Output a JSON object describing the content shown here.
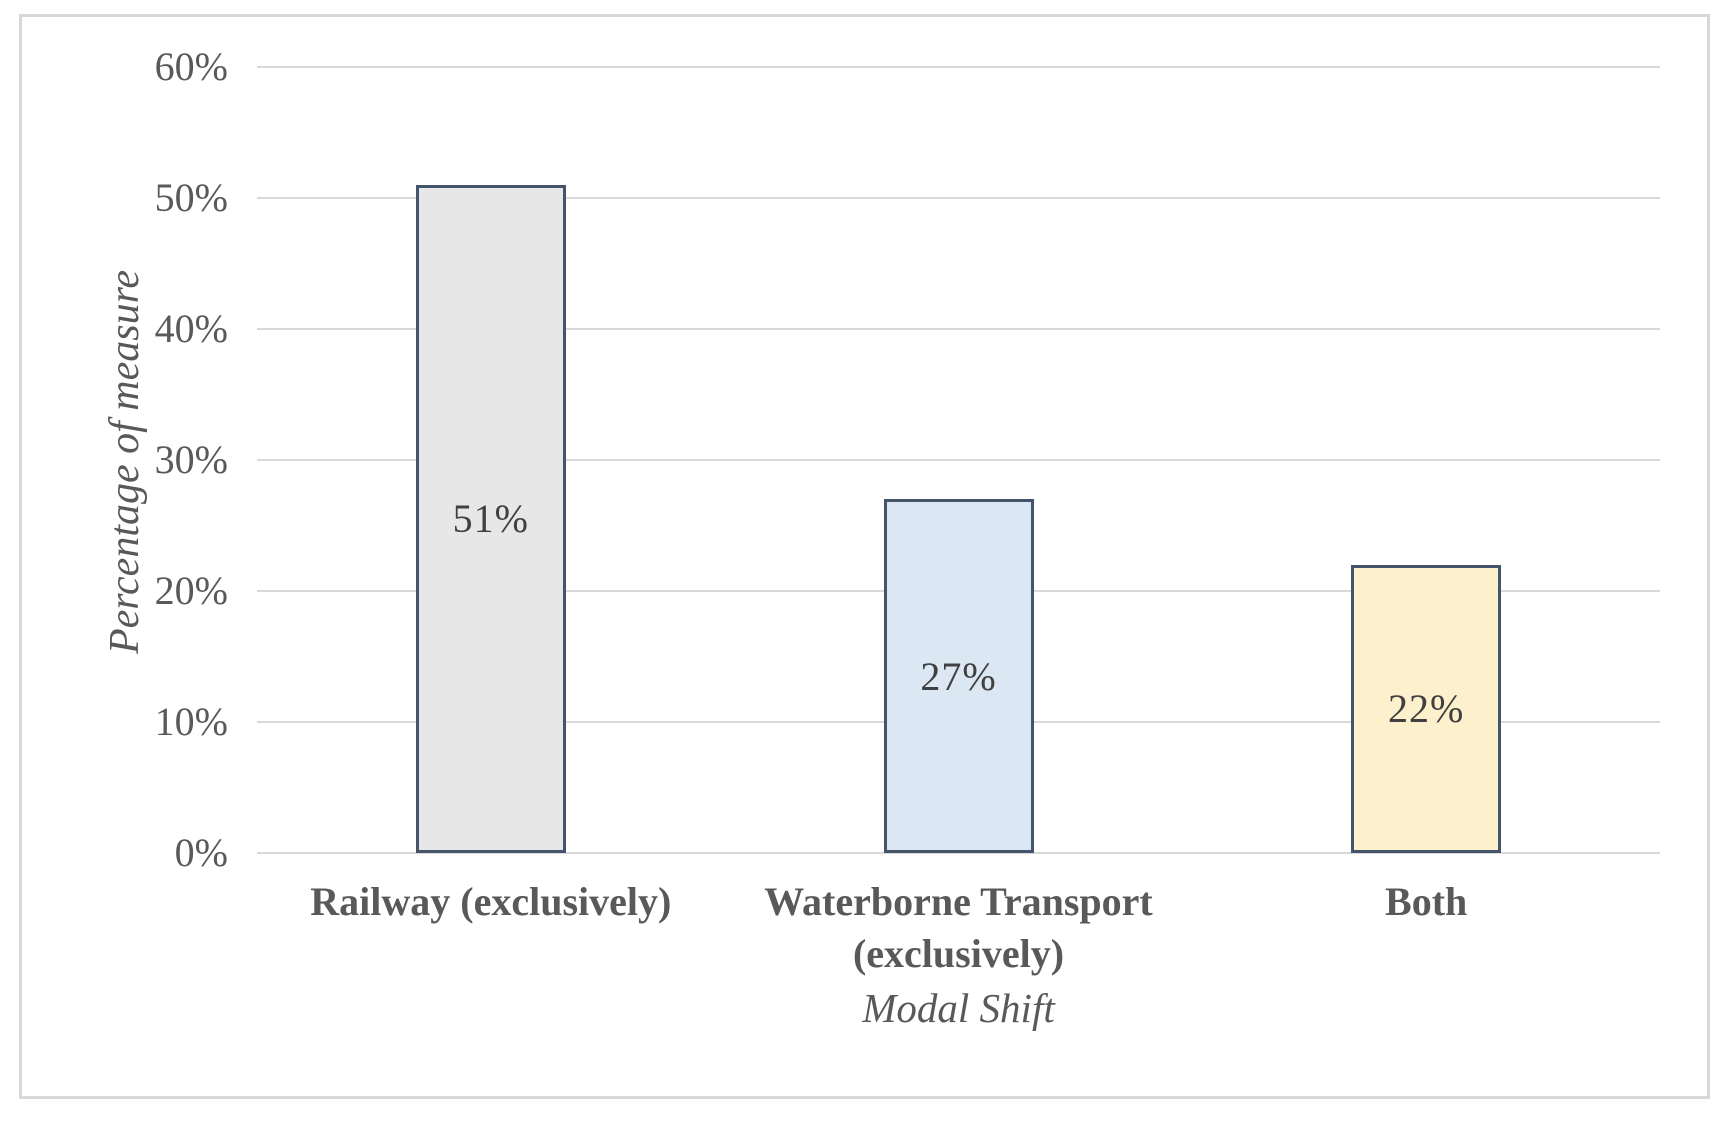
{
  "chart_data": {
    "type": "bar",
    "title": "",
    "xlabel": "Modal Shift",
    "ylabel": "Percentage of measure",
    "categories": [
      "Railway (exclusively)",
      "Waterborne Transport (exclusively)",
      "Both"
    ],
    "values": [
      51,
      27,
      22
    ],
    "data_labels": [
      "51%",
      "27%",
      "22%"
    ],
    "y_ticks": [
      {
        "value": 0,
        "label": "0%"
      },
      {
        "value": 10,
        "label": "10%"
      },
      {
        "value": 20,
        "label": "20%"
      },
      {
        "value": 30,
        "label": "30%"
      },
      {
        "value": 40,
        "label": "40%"
      },
      {
        "value": 50,
        "label": "50%"
      },
      {
        "value": 60,
        "label": "60%"
      }
    ],
    "ylim": [
      0,
      60
    ],
    "grid": true,
    "legend": false,
    "colors": {
      "bar_fills": [
        "#e8e7e7",
        "#dce7f4",
        "#fdf0cc"
      ],
      "bar_border": "#44546a",
      "gridline": "#d9d9d9",
      "axis_text": "#595959",
      "data_label_text": "#404040",
      "frame_border": "#d8d8d8",
      "background": "#ffffff"
    }
  }
}
